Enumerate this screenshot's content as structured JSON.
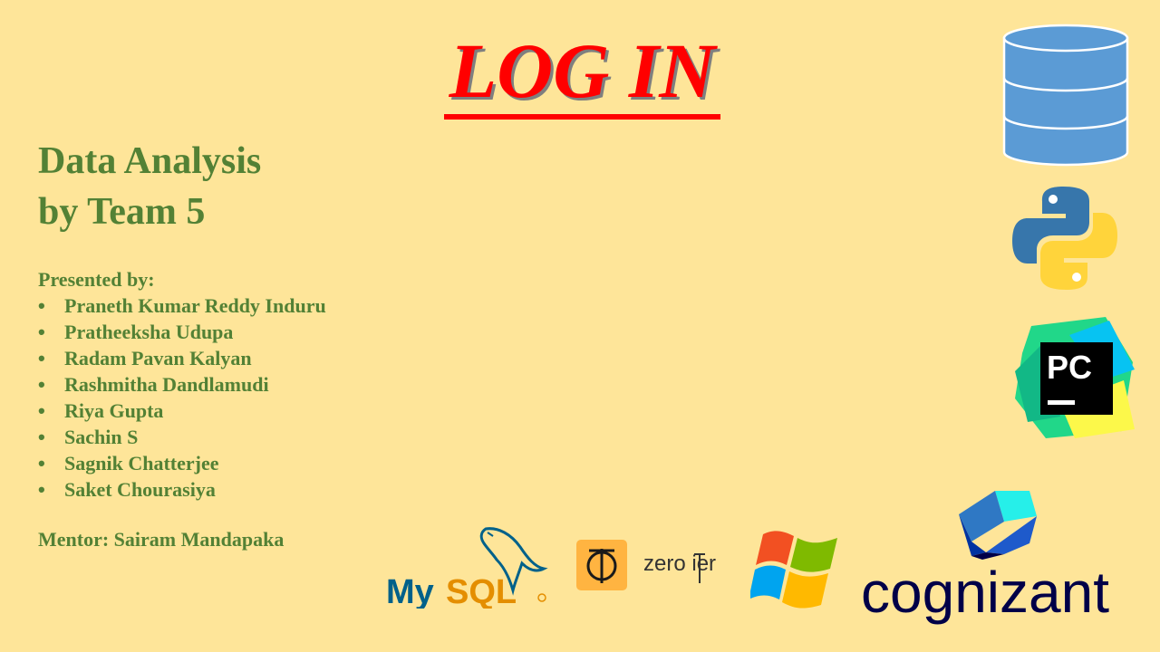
{
  "slide": {
    "title": "LOG IN",
    "subtitle_line1": "Data Analysis",
    "subtitle_line2": "by Team 5",
    "presented_by": "Presented by:",
    "members": [
      "Praneth Kumar Reddy Induru",
      "Pratheeksha Udupa",
      "Radam Pavan Kalyan",
      "Rashmitha Dandlamudi",
      "Riya Gupta",
      "Sachin S",
      "Sagnik Chatterjee",
      "Saket Chourasiya"
    ],
    "mentor": "Mentor: Sairam Mandapaka"
  },
  "logos": {
    "pycharm_text": "PC",
    "mysql_text_my": "My",
    "mysql_text_sql": "SQL",
    "zerotier_text": "zero ier",
    "cognizant_text": "cognizant"
  },
  "colors": {
    "background": "#FEE599",
    "title_red": "#FF0000",
    "green_text": "#538135",
    "database_blue": "#5B9BD5",
    "python_blue": "#3776AB",
    "python_yellow": "#FFD43B",
    "zerotier_orange": "#FFB441",
    "cognizant_navy": "#000048"
  },
  "icons": [
    "database-icon",
    "python-logo",
    "pycharm-logo",
    "mysql-logo",
    "zerotier-logo",
    "windows-logo",
    "cognizant-logo"
  ]
}
